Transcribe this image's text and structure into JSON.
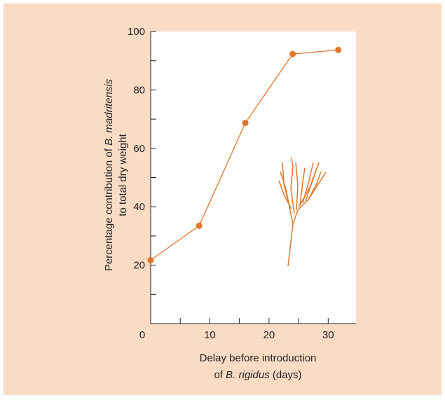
{
  "chart_data": {
    "type": "line",
    "ylabel": [
      [
        "Percentage contribution of ",
        "B. madritensis"
      ],
      [
        "to total dry weight"
      ]
    ],
    "xlabel": [
      [
        "Delay before introduction"
      ],
      [
        "of ",
        "B. rigidus",
        " (days)"
      ]
    ],
    "x": [
      0,
      8.2,
      16,
      24,
      31.7
    ],
    "values": [
      21.7,
      33.5,
      68.7,
      92.3,
      93.7
    ],
    "color": "#e0782a",
    "xlim": [
      0,
      34.7
    ],
    "ylim": [
      0,
      100
    ],
    "xticks": [
      0,
      10,
      20,
      30
    ],
    "xminor_ticks": [
      5,
      15,
      25
    ],
    "yticks": [
      20,
      40,
      60,
      80,
      100
    ],
    "yminor_ticks": [
      10,
      30,
      50,
      70,
      90
    ]
  }
}
